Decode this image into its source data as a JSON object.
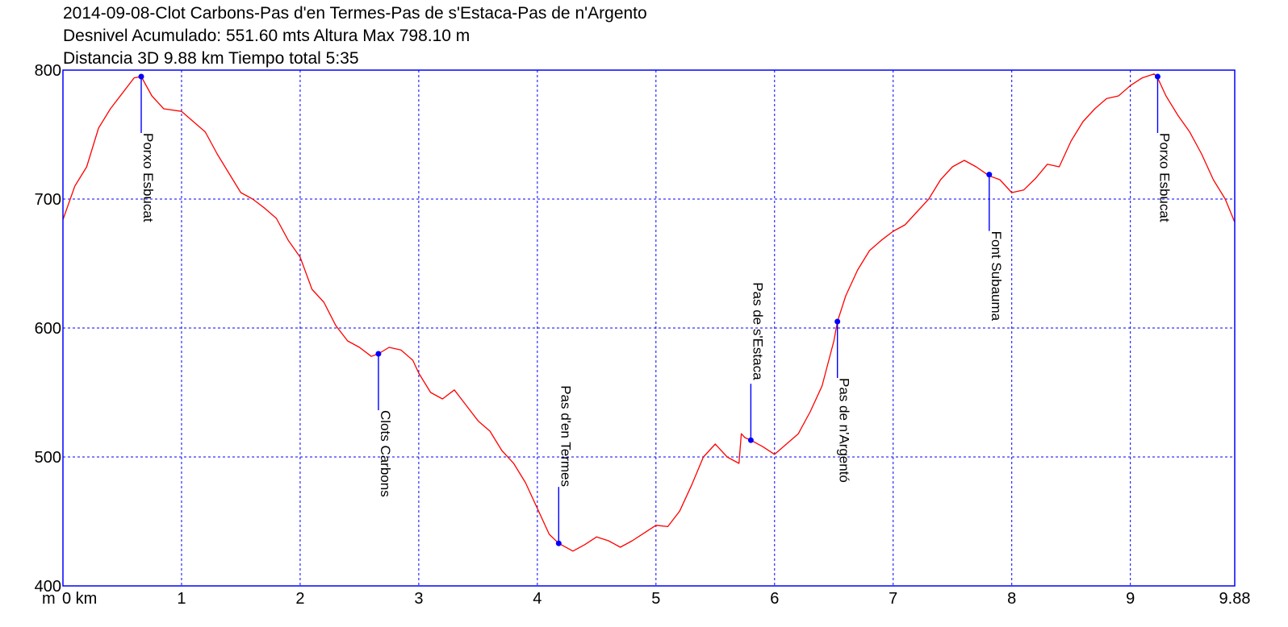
{
  "title": {
    "line1": "2014-09-08-Clot Carbons-Pas d'en Termes-Pas de s'Estaca-Pas de n'Argento",
    "line2": "Desnivel Acumulado: 551.60 mts  Altura Max 798.10 m",
    "line3": "Distancia 3D 9.88 km  Tiempo total 5:35"
  },
  "colors": {
    "profile": "#ff0000",
    "frame": "#0000ff",
    "grid": "#0000ff",
    "waypoint": "#0000ff",
    "background": "#ffffff"
  },
  "chart_data": {
    "type": "line",
    "xlabel": "km",
    "ylabel": "m",
    "xlim": [
      0,
      9.88
    ],
    "ylim": [
      400,
      800
    ],
    "grid": true,
    "x_ticks": [
      {
        "value": 0,
        "label": "0 km"
      },
      {
        "value": 1,
        "label": "1"
      },
      {
        "value": 2,
        "label": "2"
      },
      {
        "value": 3,
        "label": "3"
      },
      {
        "value": 4,
        "label": "4"
      },
      {
        "value": 5,
        "label": "5"
      },
      {
        "value": 6,
        "label": "6"
      },
      {
        "value": 7,
        "label": "7"
      },
      {
        "value": 8,
        "label": "8"
      },
      {
        "value": 9,
        "label": "9"
      },
      {
        "value": 9.88,
        "label": "9.88"
      }
    ],
    "y_ticks": [
      {
        "value": 400,
        "label": "400"
      },
      {
        "value": 500,
        "label": "500"
      },
      {
        "value": 600,
        "label": "600"
      },
      {
        "value": 700,
        "label": "700"
      },
      {
        "value": 800,
        "label": "800"
      }
    ],
    "y_unit_label": "m",
    "series": [
      {
        "x": [
          0,
          0.1,
          0.2,
          0.3,
          0.4,
          0.5,
          0.6,
          0.66,
          0.75,
          0.85,
          1.0,
          1.1,
          1.2,
          1.3,
          1.4,
          1.5,
          1.6,
          1.7,
          1.8,
          1.9,
          2.0,
          2.1,
          2.2,
          2.3,
          2.4,
          2.5,
          2.6,
          2.66,
          2.75,
          2.85,
          2.95,
          3.0,
          3.1,
          3.2,
          3.3,
          3.4,
          3.5,
          3.6,
          3.7,
          3.8,
          3.9,
          4.0,
          4.1,
          4.18,
          4.3,
          4.4,
          4.5,
          4.6,
          4.7,
          4.8,
          4.9,
          5.0,
          5.1,
          5.2,
          5.3,
          5.4,
          5.5,
          5.6,
          5.7,
          5.72,
          5.75,
          5.8,
          5.9,
          6.0,
          6.1,
          6.2,
          6.3,
          6.4,
          6.5,
          6.53,
          6.6,
          6.7,
          6.8,
          6.9,
          7.0,
          7.1,
          7.2,
          7.3,
          7.4,
          7.5,
          7.6,
          7.7,
          7.81,
          7.9,
          8.0,
          8.1,
          8.2,
          8.3,
          8.4,
          8.5,
          8.6,
          8.7,
          8.8,
          8.9,
          9.0,
          9.1,
          9.2,
          9.23,
          9.3,
          9.4,
          9.5,
          9.6,
          9.7,
          9.8,
          9.88
        ],
        "y": [
          684,
          710,
          725,
          755,
          770,
          782,
          794,
          795,
          780,
          770,
          768,
          760,
          752,
          735,
          720,
          705,
          700,
          693,
          685,
          668,
          655,
          630,
          620,
          602,
          590,
          585,
          578,
          580,
          585,
          583,
          575,
          565,
          550,
          545,
          552,
          540,
          528,
          520,
          505,
          495,
          480,
          460,
          440,
          433,
          427,
          432,
          438,
          435,
          430,
          435,
          441,
          447,
          446,
          458,
          478,
          500,
          510,
          500,
          495,
          518,
          515,
          513,
          508,
          502,
          510,
          518,
          535,
          555,
          590,
          605,
          625,
          645,
          660,
          668,
          675,
          680,
          690,
          700,
          715,
          725,
          730,
          725,
          718,
          715,
          705,
          707,
          716,
          727,
          725,
          745,
          760,
          770,
          778,
          780,
          788,
          794,
          797,
          794,
          780,
          765,
          752,
          735,
          715,
          700,
          682
        ]
      }
    ],
    "waypoints": [
      {
        "name": "Porxo Esbucat",
        "x": 0.66,
        "y": 795
      },
      {
        "name": "Clots Carbons",
        "x": 2.66,
        "y": 580
      },
      {
        "name": "Pas d'en Termes",
        "x": 4.18,
        "y": 433
      },
      {
        "name": "Pas de s'Estaca",
        "x": 5.8,
        "y": 513
      },
      {
        "name": "Pas de n'Argentó",
        "x": 6.53,
        "y": 605
      },
      {
        "name": "Font Subauma",
        "x": 7.81,
        "y": 719
      },
      {
        "name": "Porxo Esbucat",
        "x": 9.23,
        "y": 795
      }
    ]
  }
}
